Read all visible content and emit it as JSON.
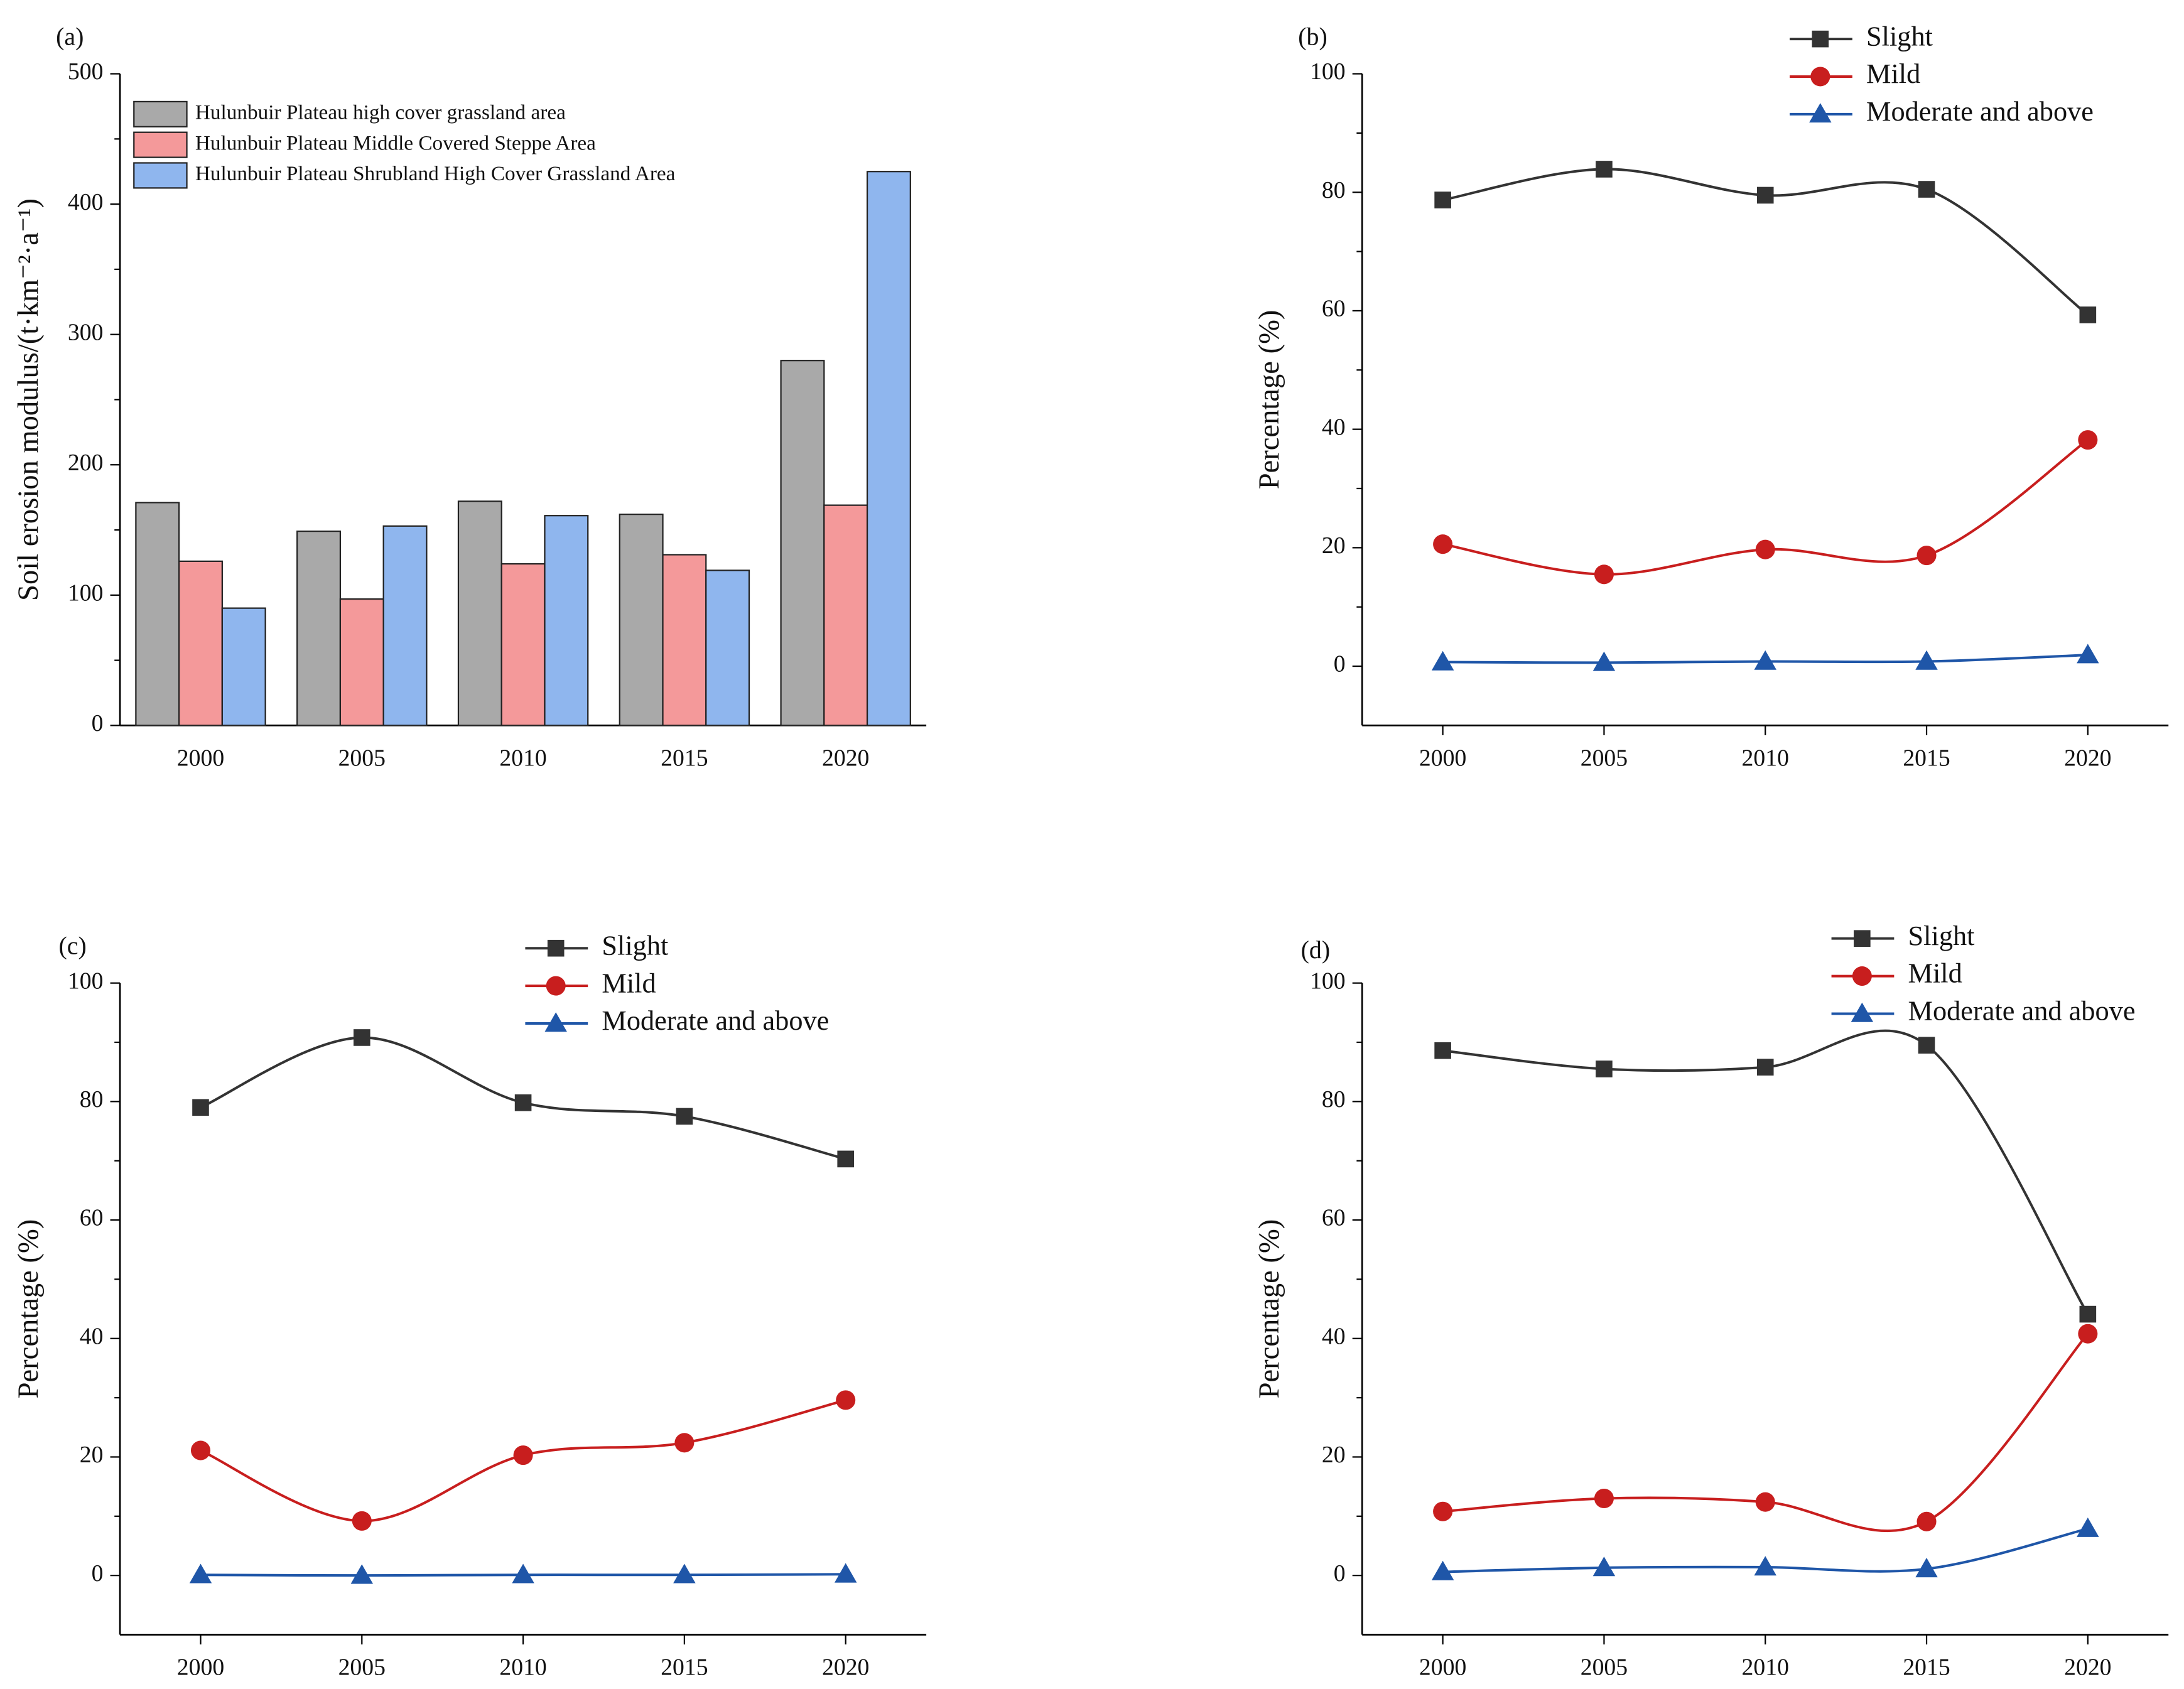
{
  "chart_data": [
    {
      "type": "bar",
      "panel_label": "(a)",
      "ylabel": "Soil erosion modulus/(t·km⁻²·a⁻¹)",
      "categories": [
        "2000",
        "2005",
        "2010",
        "2015",
        "2020"
      ],
      "series": [
        {
          "name": "Hulunbuir Plateau high cover grassland area",
          "color": "#a9a9a9",
          "values": [
            171,
            149,
            172,
            162,
            280
          ]
        },
        {
          "name": "Hulunbuir Plateau Middle Covered Steppe Area",
          "color": "#f4999a",
          "values": [
            126,
            97,
            124,
            131,
            169
          ]
        },
        {
          "name": "Hulunbuir Plateau Shrubland High Cover Grassland Area",
          "color": "#8fb6ee",
          "values": [
            90,
            153,
            161,
            119,
            425
          ]
        }
      ],
      "ylim": [
        0,
        500
      ],
      "yticks": [
        0,
        100,
        200,
        300,
        400,
        500
      ]
    },
    {
      "type": "line",
      "panel_label": "(b)",
      "ylabel": "Percentage (%)",
      "x": [
        2000,
        2005,
        2010,
        2015,
        2020
      ],
      "series": [
        {
          "name": "Slight",
          "color": "#333333",
          "marker": "square",
          "values": [
            78.7,
            83.9,
            79.5,
            80.5,
            59.3
          ]
        },
        {
          "name": "Mild",
          "color": "#c81e1e",
          "marker": "circle",
          "values": [
            20.6,
            15.5,
            19.7,
            18.7,
            38.2
          ]
        },
        {
          "name": "Moderate and above",
          "color": "#1f56a8",
          "marker": "triangle",
          "values": [
            0.7,
            0.6,
            0.8,
            0.8,
            1.9
          ]
        }
      ],
      "xlim": [
        1997.5,
        2022.5
      ],
      "xticks": [
        2000,
        2005,
        2010,
        2015,
        2020
      ],
      "ylim": [
        -10,
        100
      ],
      "yticks": [
        0,
        20,
        40,
        60,
        80,
        100
      ]
    },
    {
      "type": "line",
      "panel_label": "(c)",
      "ylabel": "Percentage (%)",
      "x": [
        2000,
        2005,
        2010,
        2015,
        2020
      ],
      "series": [
        {
          "name": "Slight",
          "color": "#333333",
          "marker": "square",
          "values": [
            79,
            90.8,
            79.8,
            77.5,
            70.3
          ]
        },
        {
          "name": "Mild",
          "color": "#c81e1e",
          "marker": "circle",
          "values": [
            21.1,
            9.2,
            20.3,
            22.4,
            29.6
          ]
        },
        {
          "name": "Moderate and above",
          "color": "#1f56a8",
          "marker": "triangle",
          "values": [
            0.1,
            0,
            0.1,
            0.1,
            0.2
          ]
        }
      ],
      "xlim": [
        1997.5,
        2022.5
      ],
      "xticks": [
        2000,
        2005,
        2010,
        2015,
        2020
      ],
      "ylim": [
        -10,
        100
      ],
      "yticks": [
        0,
        20,
        40,
        60,
        80,
        100
      ]
    },
    {
      "type": "line",
      "panel_label": "(d)",
      "ylabel": "Percentage (%)",
      "x": [
        2000,
        2005,
        2010,
        2015,
        2020
      ],
      "series": [
        {
          "name": "Slight",
          "color": "#333333",
          "marker": "square",
          "values": [
            88.6,
            85.5,
            85.8,
            89.5,
            44.1
          ]
        },
        {
          "name": "Mild",
          "color": "#c81e1e",
          "marker": "circle",
          "values": [
            10.8,
            13,
            12.4,
            9.1,
            40.8
          ]
        },
        {
          "name": "Moderate and above",
          "color": "#1f56a8",
          "marker": "triangle",
          "values": [
            0.6,
            1.3,
            1.4,
            1.1,
            7.9
          ]
        }
      ],
      "xlim": [
        1997.5,
        2022.5
      ],
      "xticks": [
        2000,
        2005,
        2010,
        2015,
        2020
      ],
      "ylim": [
        -10,
        100
      ],
      "yticks": [
        0,
        20,
        40,
        60,
        80,
        100
      ]
    }
  ]
}
